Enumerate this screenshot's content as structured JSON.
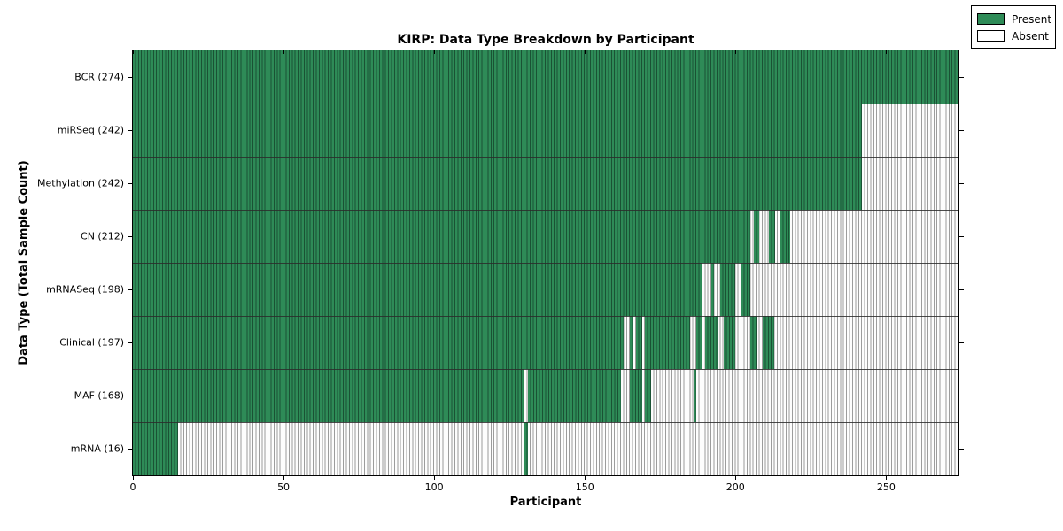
{
  "chart_data": {
    "type": "heatmap",
    "title": "KIRP: Data Type Breakdown by Participant",
    "xlabel": "Participant",
    "ylabel": "Data Type (Total Sample Count)",
    "x_min": 0,
    "x_max": 274,
    "x_ticks": [
      0,
      50,
      100,
      150,
      200,
      250
    ],
    "grid": false,
    "legend_position": "upper right",
    "legend": [
      {
        "label": "Present",
        "color": "#2e8b57"
      },
      {
        "label": "Absent",
        "color": "#ffffff"
      }
    ],
    "colors": {
      "present_fill": "#2e8b57",
      "present_edge": "#1a5234",
      "absent_fill": "#fdfdfd",
      "absent_edge": "#9c9c9c",
      "row_divider": "#2b2b2b",
      "axis": "#000000"
    },
    "rows": [
      {
        "label": "BCR (274)",
        "data_type": "BCR",
        "total": 274,
        "present_runs": [
          [
            0,
            274
          ]
        ]
      },
      {
        "label": "miRSeq (242)",
        "data_type": "miRSeq",
        "total": 242,
        "present_runs": [
          [
            0,
            242
          ]
        ]
      },
      {
        "label": "Methylation (242)",
        "data_type": "Methylation",
        "total": 242,
        "present_runs": [
          [
            0,
            242
          ]
        ]
      },
      {
        "label": "CN (212)",
        "data_type": "CN",
        "total": 212,
        "present_runs": [
          [
            0,
            205
          ],
          [
            206,
            208
          ],
          [
            211,
            213
          ],
          [
            215,
            218
          ]
        ]
      },
      {
        "label": "mRNASeq (198)",
        "data_type": "mRNASeq",
        "total": 198,
        "present_runs": [
          [
            0,
            189
          ],
          [
            192,
            193
          ],
          [
            195,
            200
          ],
          [
            202,
            205
          ]
        ]
      },
      {
        "label": "Clinical (197)",
        "data_type": "Clinical",
        "total": 197,
        "present_runs": [
          [
            0,
            163
          ],
          [
            165,
            166
          ],
          [
            167,
            169
          ],
          [
            170,
            185
          ],
          [
            187,
            189
          ],
          [
            190,
            194
          ],
          [
            196,
            200
          ],
          [
            205,
            207
          ],
          [
            209,
            213
          ]
        ]
      },
      {
        "label": "MAF (168)",
        "data_type": "MAF",
        "total": 168,
        "present_runs": [
          [
            0,
            130
          ],
          [
            131,
            162
          ],
          [
            165,
            169
          ],
          [
            170,
            172
          ],
          [
            186,
            187
          ]
        ]
      },
      {
        "label": "mRNA (16)",
        "data_type": "mRNA",
        "total": 16,
        "present_runs": [
          [
            0,
            15
          ],
          [
            130,
            131
          ]
        ]
      }
    ]
  }
}
